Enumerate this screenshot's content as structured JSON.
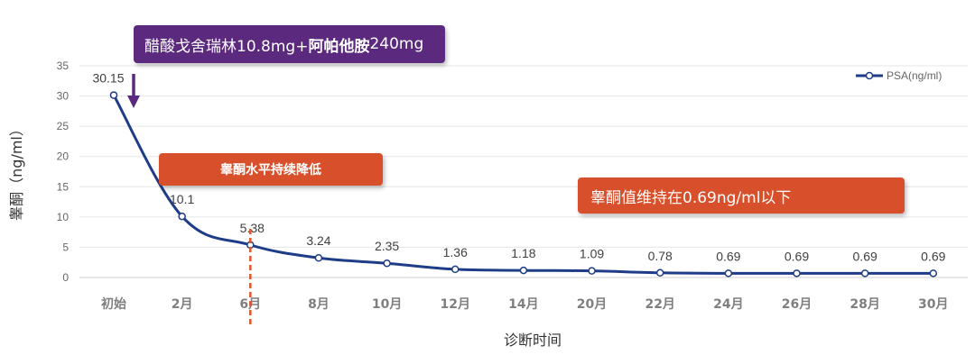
{
  "callouts": {
    "drug_plain": "醋酸戈舍瑞林10.8mg+",
    "drug_bold": "阿帕他胺",
    "drug_tail": "240mg",
    "decline": "睾酮水平持续降低",
    "maintain": "睾酮值维持在0.69ng/ml以下"
  },
  "colors": {
    "line": "#1f3c88",
    "arrow": "#5b2a7e",
    "marker_dash": "#e0572b",
    "callout_purple": "#5b2a7e",
    "callout_orange": "#d8502b"
  },
  "chart_data": {
    "type": "line",
    "categories": [
      "初始",
      "2月",
      "6月",
      "8月",
      "10月",
      "12月",
      "14月",
      "20月",
      "22月",
      "24月",
      "26月",
      "28月",
      "30月"
    ],
    "series": [
      {
        "name": "PSA(ng/ml)",
        "values": [
          30.15,
          10.1,
          5.38,
          3.24,
          2.35,
          1.36,
          1.18,
          1.09,
          0.78,
          0.69,
          0.69,
          0.69,
          0.69
        ],
        "labels": [
          "30.15",
          "10.1",
          "5.38",
          "3.24",
          "2.35",
          "1.36",
          "1.18",
          "1.09",
          "0.78",
          "0.69",
          "0.69",
          "0.69",
          "0.69"
        ]
      }
    ],
    "xlabel": "诊断时间",
    "ylabel": "睾酮（ng/ml）",
    "ylim": [
      0,
      35
    ],
    "yticks": [
      0,
      5,
      10,
      15,
      20,
      25,
      30,
      35
    ],
    "grid": true,
    "legend": "top-right",
    "marker_category": "6月"
  }
}
